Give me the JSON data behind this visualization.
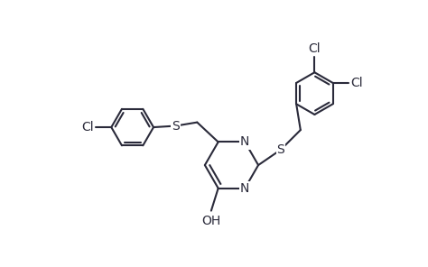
{
  "bg_color": "#ffffff",
  "line_color": "#2a2a3a",
  "text_color": "#2a2a3a",
  "line_width": 1.5,
  "font_size": 10,
  "figsize": [
    4.74,
    2.96
  ],
  "dpi": 100,
  "xlim": [
    -2.6,
    2.8
  ],
  "ylim": [
    -1.6,
    2.2
  ]
}
